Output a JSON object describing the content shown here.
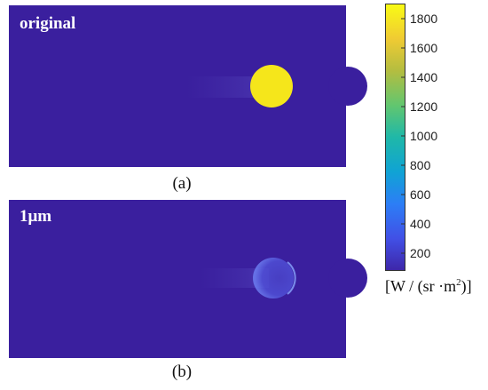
{
  "panels": [
    {
      "label": "original",
      "caption": "(a)"
    },
    {
      "label": "1μm",
      "caption": "(b)"
    }
  ],
  "colorbar": {
    "ticks": [
      "1800",
      "1600",
      "1400",
      "1200",
      "1000",
      "800",
      "600",
      "400",
      "200"
    ],
    "unit_prefix": "[W / (sr",
    "unit_dot": "·",
    "unit_m": "m",
    "unit_exp": "2",
    "unit_suffix": ")]"
  },
  "colors": {
    "background": "#3a1f9e",
    "hot": "#f5e61b",
    "colormap": [
      "#3e26a8",
      "#4150e6",
      "#2c7ef6",
      "#10a3d4",
      "#1fb8a8",
      "#62c66f",
      "#b4bd40",
      "#f0cb33",
      "#f9fb14"
    ]
  }
}
